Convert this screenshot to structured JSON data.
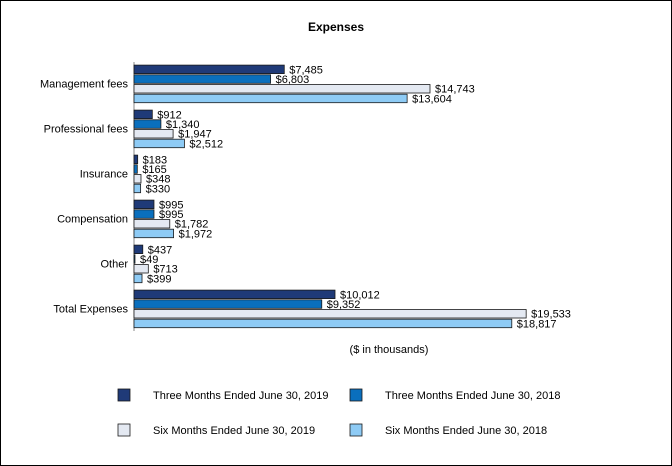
{
  "chart_data": {
    "type": "bar",
    "orientation": "horizontal",
    "title": "Expenses",
    "x_label": "($ in thousands)",
    "categories": [
      "Management fees",
      "Professional fees",
      "Insurance",
      "Compensation",
      "Other",
      "Total Expenses"
    ],
    "series": [
      {
        "name": "Three Months Ended June 30, 2019",
        "color": "#1f3a78",
        "values": [
          7485,
          912,
          183,
          995,
          437,
          10012
        ],
        "value_labels": [
          "$7,485",
          "$912",
          "$183",
          "$995",
          "$437",
          "$10,012"
        ]
      },
      {
        "name": "Three Months Ended June 30, 2018",
        "color": "#0a6fbd",
        "values": [
          6803,
          1340,
          165,
          995,
          49,
          9352
        ],
        "value_labels": [
          "$6,803",
          "$1,340",
          "$165",
          "$995",
          "$49",
          "$9,352"
        ]
      },
      {
        "name": "Six Months Ended June 30, 2019",
        "color": "#e4e9f2",
        "values": [
          14743,
          1947,
          348,
          1782,
          713,
          19533
        ],
        "value_labels": [
          "$14,743",
          "$1,947",
          "$348",
          "$1,782",
          "$713",
          "$19,533"
        ]
      },
      {
        "name": "Six Months Ended June 30, 2018",
        "color": "#8ecbf5",
        "values": [
          13604,
          2512,
          330,
          1972,
          399,
          18817
        ],
        "value_labels": [
          "$13,604",
          "$2,512",
          "$330",
          "$1,972",
          "$399",
          "$18,817"
        ]
      }
    ],
    "xlim": [
      0,
      26000
    ]
  }
}
